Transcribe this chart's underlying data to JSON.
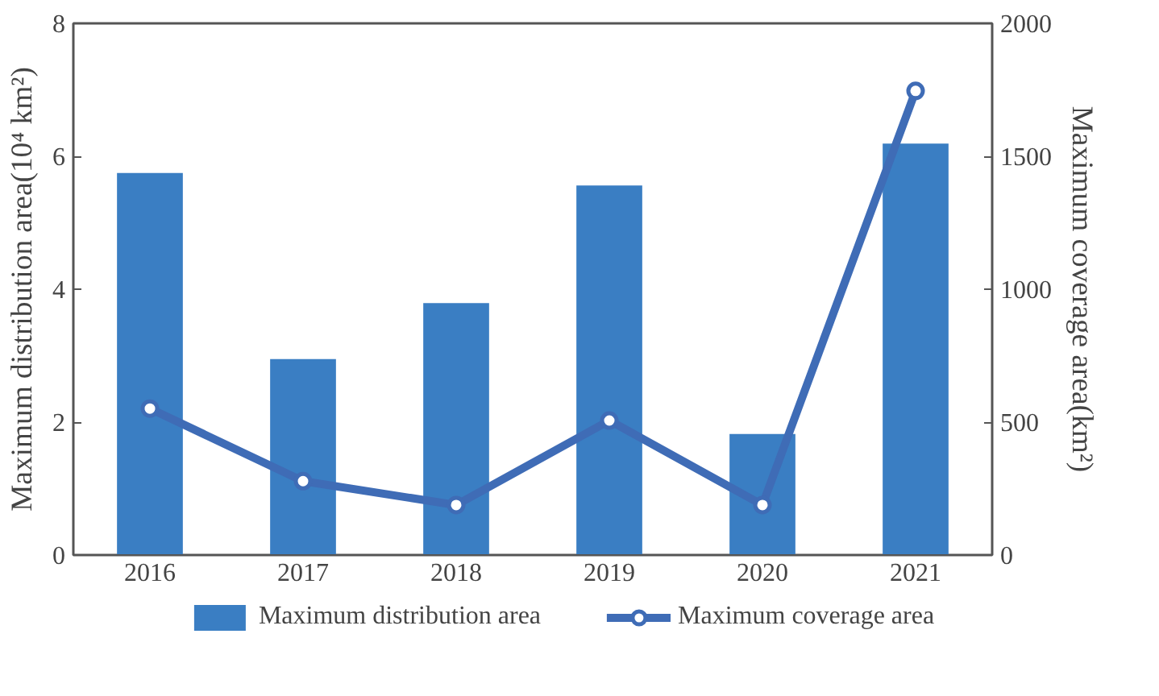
{
  "chart_data": {
    "type": "bar",
    "categories": [
      "2016",
      "2017",
      "2018",
      "2019",
      "2020",
      "2021"
    ],
    "ylabel": "Maximum distribution area(10⁴ km²)",
    "y2label": "Maximum coverage area(km²)",
    "ylim": [
      0,
      8
    ],
    "yticks": [
      0,
      2,
      4,
      6,
      8
    ],
    "y2lim": [
      0,
      2000
    ],
    "y2ticks": [
      0,
      500,
      1000,
      1500,
      2000
    ],
    "grid": false,
    "legend": "bottom",
    "series": [
      {
        "name": "Maximum distribution area",
        "color": "#3a7ec3",
        "values": [
          5.75,
          2.95,
          3.79,
          5.56,
          1.82,
          6.19
        ]
      },
      {
        "name": "Maximum coverage area",
        "type": "line",
        "axis": "y2",
        "color": "#3f6cb6",
        "marker": "circle",
        "values": [
          551,
          278,
          188,
          506,
          188,
          1746
        ]
      }
    ]
  }
}
